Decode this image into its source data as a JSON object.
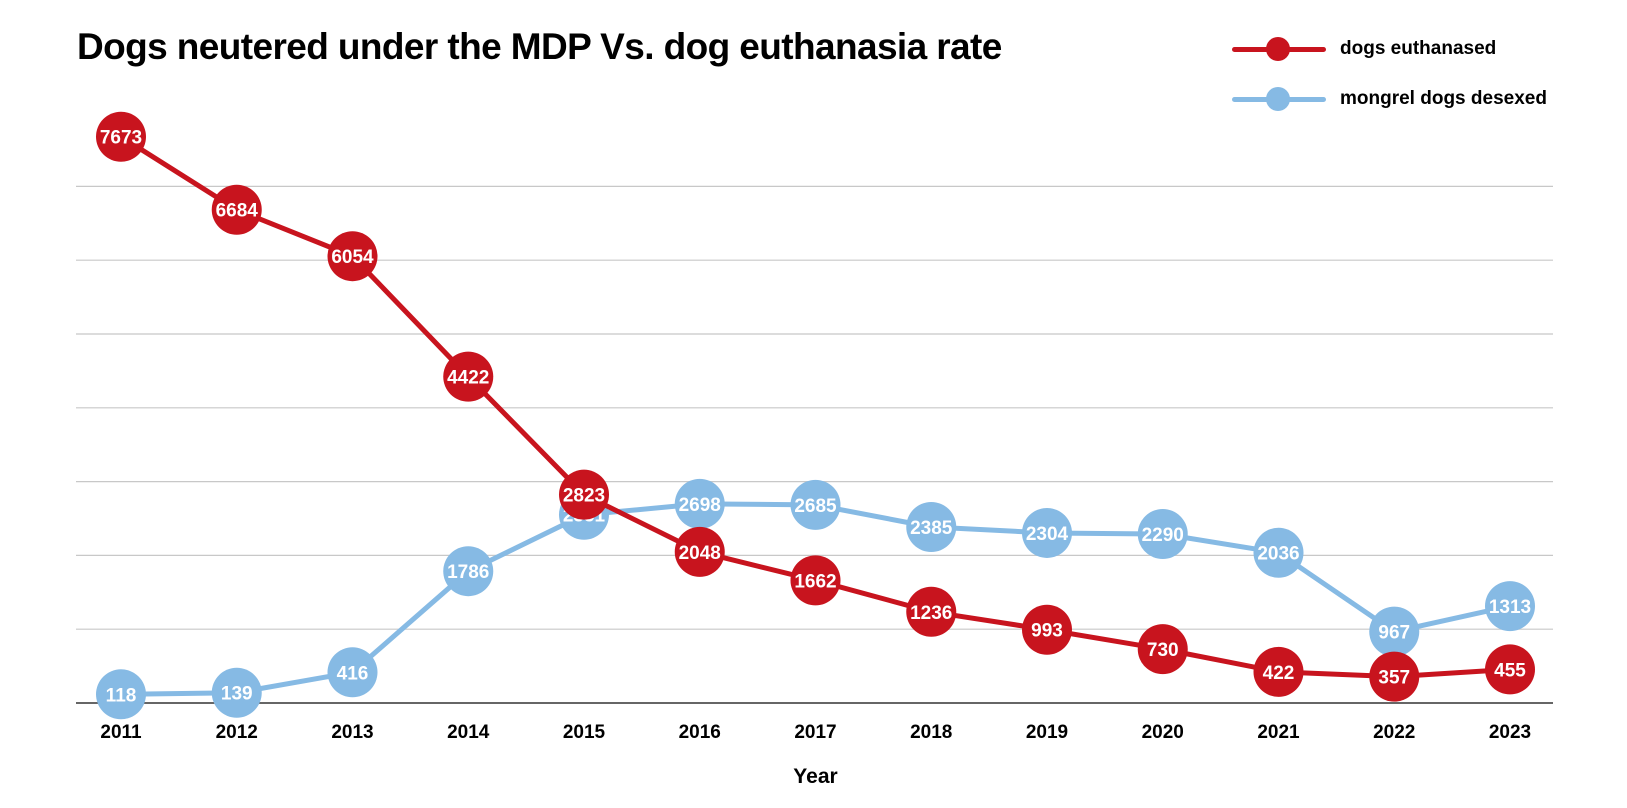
{
  "chart_data": {
    "type": "line",
    "title": "Dogs neutered under the MDP Vs. dog euthanasia rate",
    "xlabel": "Year",
    "ylabel": "",
    "x": [
      "2011",
      "2012",
      "2013",
      "2014",
      "2015",
      "2016",
      "2017",
      "2018",
      "2019",
      "2020",
      "2021",
      "2022",
      "2023"
    ],
    "ylim": [
      0,
      8000
    ],
    "grid": true,
    "y_gridlines": [
      1000,
      2000,
      3000,
      4000,
      5000,
      6000,
      7000
    ],
    "legend_position": "top-right",
    "series": [
      {
        "name": "dogs euthanased",
        "color": "#c8141e",
        "values": [
          7673,
          6684,
          6054,
          4422,
          2823,
          2048,
          1662,
          1236,
          993,
          730,
          422,
          357,
          455
        ]
      },
      {
        "name": "mongrel dogs desexed",
        "color": "#86bae4",
        "values": [
          118,
          139,
          416,
          1786,
          2551,
          2698,
          2685,
          2385,
          2304,
          2290,
          2036,
          967,
          1313
        ]
      }
    ]
  }
}
